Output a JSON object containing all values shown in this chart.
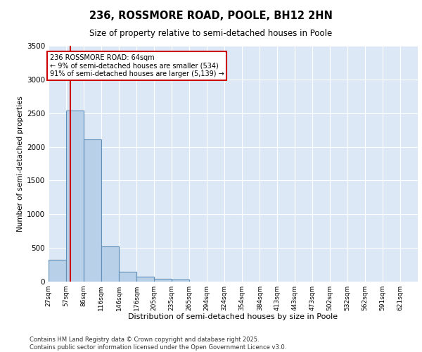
{
  "title1": "236, ROSSMORE ROAD, POOLE, BH12 2HN",
  "title2": "Size of property relative to semi-detached houses in Poole",
  "xlabel": "Distribution of semi-detached houses by size in Poole",
  "ylabel": "Number of semi-detached properties",
  "bin_labels": [
    "27sqm",
    "57sqm",
    "86sqm",
    "116sqm",
    "146sqm",
    "176sqm",
    "205sqm",
    "235sqm",
    "265sqm",
    "294sqm",
    "324sqm",
    "354sqm",
    "384sqm",
    "413sqm",
    "443sqm",
    "473sqm",
    "502sqm",
    "532sqm",
    "562sqm",
    "591sqm",
    "621sqm"
  ],
  "bin_edges": [
    27,
    57,
    86,
    116,
    146,
    176,
    205,
    235,
    265,
    294,
    324,
    354,
    384,
    413,
    443,
    473,
    502,
    532,
    562,
    591,
    621
  ],
  "bar_heights": [
    320,
    2540,
    2110,
    520,
    150,
    70,
    40,
    35,
    0,
    0,
    0,
    0,
    0,
    0,
    0,
    0,
    0,
    0,
    0,
    0
  ],
  "bar_color": "#b8d0e8",
  "bar_edge_color": "#6090b8",
  "property_line_x": 64,
  "annotation_title": "236 ROSSMORE ROAD: 64sqm",
  "annotation_line1": "← 9% of semi-detached houses are smaller (534)",
  "annotation_line2": "91% of semi-detached houses are larger (5,139) →",
  "ylim": [
    0,
    3500
  ],
  "yticks": [
    0,
    500,
    1000,
    1500,
    2000,
    2500,
    3000,
    3500
  ],
  "background_color": "#dce8f5",
  "grid_color": "#ffffff",
  "footer1": "Contains HM Land Registry data © Crown copyright and database right 2025.",
  "footer2": "Contains public sector information licensed under the Open Government Licence v3.0."
}
